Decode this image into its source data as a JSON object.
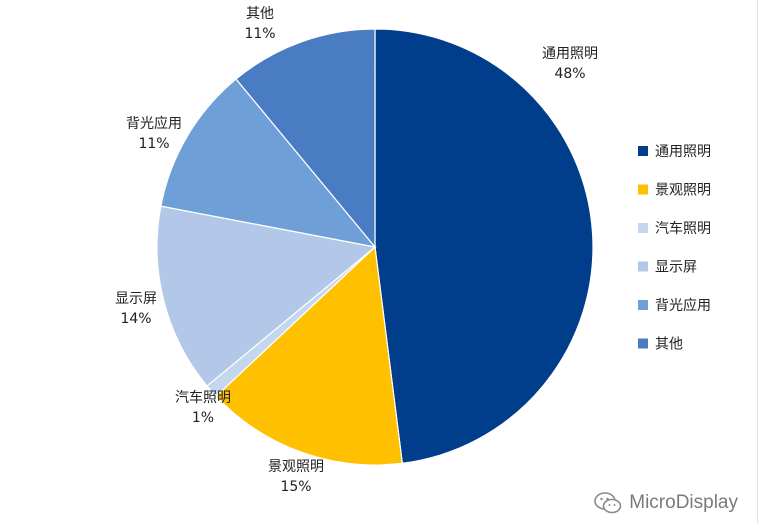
{
  "chart_data": {
    "type": "pie",
    "categories": [
      "通用照明",
      "景观照明",
      "汽车照明",
      "显示屏",
      "背光应用",
      "其他"
    ],
    "values": [
      48,
      15,
      1,
      14,
      11,
      11
    ],
    "value_labels": [
      "48%",
      "15%",
      "1%",
      "14%",
      "11%",
      "11%"
    ],
    "colors": [
      "#003e8c",
      "#ffc000",
      "#c5d7ee",
      "#b3c7e8",
      "#6ea0d7",
      "#4a7cc4"
    ],
    "title": "",
    "legend_position": "right",
    "legend": [
      "通用照明",
      "景观照明",
      "汽车照明",
      "显示屏",
      "背光应用",
      "其他"
    ]
  },
  "watermark": {
    "icon": "wechat-icon",
    "text": "MicroDisplay"
  }
}
